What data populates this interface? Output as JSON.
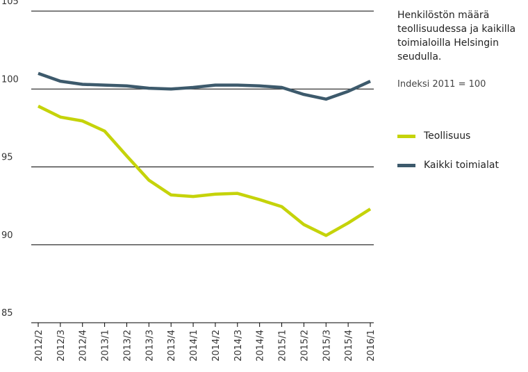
{
  "chart_data": {
    "type": "line",
    "title": "Henkilöstön määrä teollisuudessa ja kaikilla toimialoilla Helsingin seudulla.",
    "subtitle": "Indeksi 2011 = 100",
    "categories": [
      "2012/2",
      "2012/3",
      "2012/4",
      "2013/1",
      "2013/2",
      "2013/3",
      "2013/4",
      "2014/1",
      "2014/2",
      "2014/3",
      "2014/4",
      "2015/1",
      "2015/2",
      "2015/3",
      "2015/4",
      "2016/1"
    ],
    "series": [
      {
        "name": "Teollisuus",
        "color": "#c5d30a",
        "values": [
          98.9,
          98.2,
          97.95,
          97.3,
          95.7,
          94.15,
          93.2,
          93.1,
          93.25,
          93.3,
          92.9,
          92.45,
          91.3,
          90.6,
          91.4,
          92.3
        ]
      },
      {
        "name": "Kaikki toimialat",
        "color": "#3d5a6c",
        "values": [
          101.0,
          100.5,
          100.3,
          100.25,
          100.2,
          100.05,
          100.0,
          100.1,
          100.25,
          100.25,
          100.2,
          100.1,
          99.65,
          99.35,
          99.85,
          100.5
        ]
      }
    ],
    "ylim": [
      85,
      105
    ],
    "yticks": [
      85,
      90,
      95,
      100,
      105
    ],
    "grid": true
  }
}
